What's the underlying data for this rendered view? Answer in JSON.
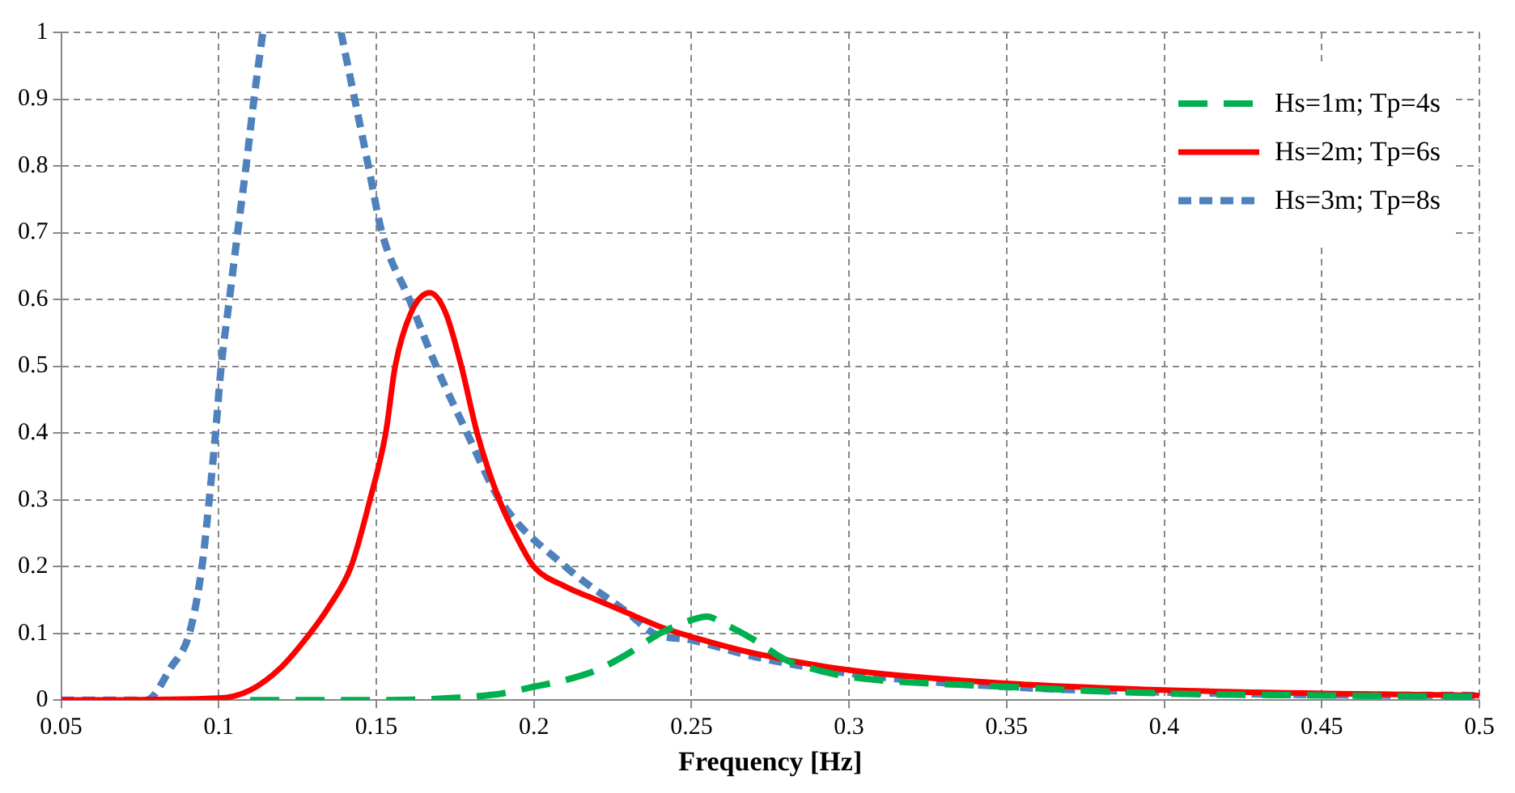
{
  "chart_data": {
    "type": "line",
    "xlabel": "Frequency [Hz]",
    "xlim": [
      0.05,
      0.5
    ],
    "xticks": [
      0.05,
      0.1,
      0.15,
      0.2,
      0.25,
      0.3,
      0.35,
      0.4,
      0.45,
      0.5
    ],
    "ylim": [
      0,
      1
    ],
    "yticks": [
      0,
      0.1,
      0.2,
      0.3,
      0.4,
      0.5,
      0.6,
      0.7,
      0.8,
      0.9,
      1
    ],
    "grid": true,
    "legend": "top right",
    "marker": "none",
    "series": [
      {
        "name": "Hs=1m; Tp=4s",
        "color": "#00b050",
        "line_style": "dashed",
        "x": [
          0.11,
          0.15,
          0.17,
          0.18,
          0.19,
          0.2,
          0.21,
          0.22,
          0.23,
          0.24,
          0.25,
          0.255,
          0.26,
          0.27,
          0.28,
          0.29,
          0.3,
          0.35,
          0.4,
          0.45,
          0.5
        ],
        "values": [
          0,
          0,
          0.002,
          0.005,
          0.01,
          0.02,
          0.03,
          0.045,
          0.07,
          0.1,
          0.12,
          0.125,
          0.115,
          0.09,
          0.06,
          0.045,
          0.035,
          0.02,
          0.01,
          0.007,
          0.005
        ]
      },
      {
        "name": "Hs=2m; Tp=6s",
        "color": "#ff0000",
        "line_style": "solid",
        "x": [
          0.05,
          0.1,
          0.11,
          0.12,
          0.129,
          0.135,
          0.142,
          0.148,
          0.153,
          0.156,
          0.161,
          0.167,
          0.172,
          0.177,
          0.182,
          0.189,
          0.195,
          0.2,
          0.21,
          0.22,
          0.23,
          0.24,
          0.25,
          0.27,
          0.3,
          0.35,
          0.4,
          0.45,
          0.5
        ],
        "values": [
          0,
          0.003,
          0.015,
          0.05,
          0.1,
          0.14,
          0.2,
          0.3,
          0.4,
          0.5,
          0.58,
          0.61,
          0.58,
          0.5,
          0.4,
          0.3,
          0.24,
          0.2,
          0.17,
          0.15,
          0.13,
          0.11,
          0.095,
          0.07,
          0.045,
          0.025,
          0.015,
          0.01,
          0.007
        ]
      },
      {
        "name": "Hs=3m; Tp=8s",
        "color": "#4f81bd",
        "line_style": "dotted",
        "x": [
          0.05,
          0.077,
          0.085,
          0.0907,
          0.0947,
          0.097,
          0.099,
          0.1008,
          0.1034,
          0.106,
          0.1087,
          0.1112,
          0.114,
          0.12,
          0.1388,
          0.1475,
          0.1518,
          0.1605,
          0.169,
          0.1788,
          0.1892,
          0.21,
          0.23,
          0.238,
          0.25,
          0.27,
          0.3,
          0.35,
          0.4,
          0.45,
          0.5
        ],
        "values": [
          0,
          0,
          0.05,
          0.1,
          0.2,
          0.3,
          0.4,
          0.5,
          0.6,
          0.7,
          0.8,
          0.9,
          1,
          null,
          1,
          0.8,
          0.7,
          0.6,
          0.5,
          0.4,
          0.3,
          0.2,
          0.13,
          0.1,
          0.09,
          0.065,
          0.04,
          0.02,
          0.012,
          0.008,
          0.007
        ]
      }
    ]
  }
}
